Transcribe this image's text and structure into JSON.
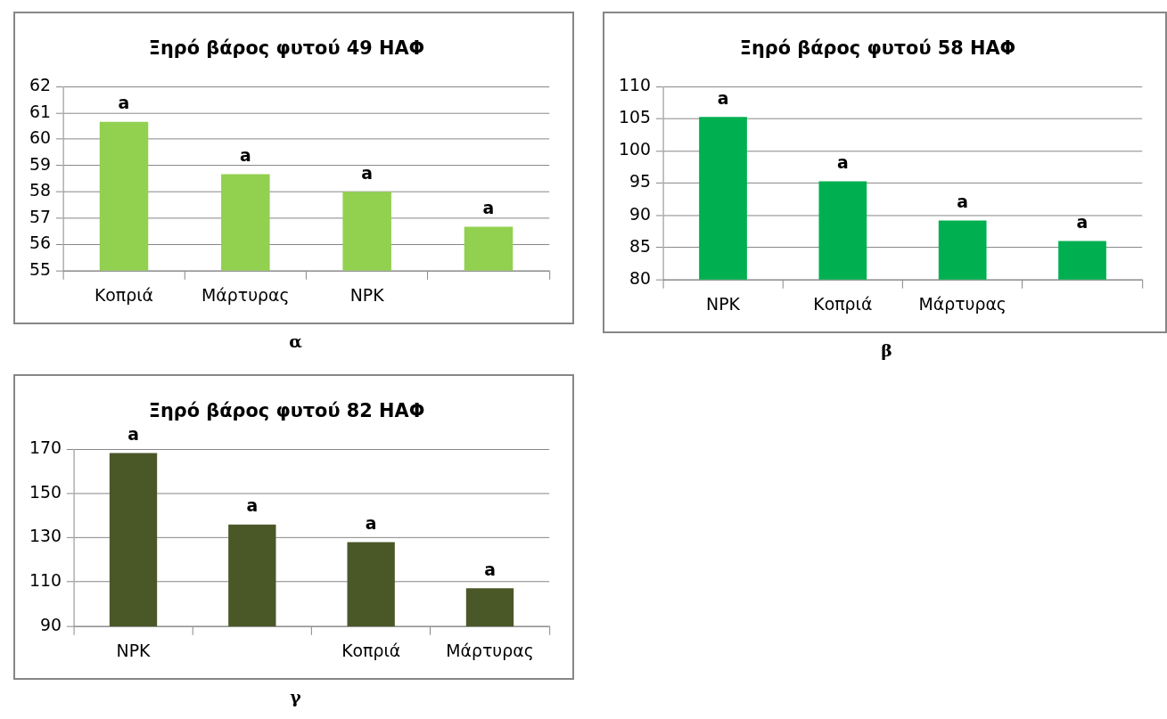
{
  "chart_data": [
    {
      "type": "bar",
      "title": "Ξηρό βάρος φυτού 49 ΗΑΦ",
      "categories": [
        "Κοπριά",
        "Μάρτυρας",
        "NPK",
        null
      ],
      "values": [
        60.66,
        58.67,
        58.0,
        56.67
      ],
      "color": "#92d050",
      "value_labels": [
        "a",
        "a",
        "a",
        "a"
      ],
      "ylim": [
        55,
        62
      ],
      "yticks": [
        55,
        56,
        57,
        58,
        59,
        60,
        61,
        62
      ],
      "grid": "y",
      "annotations": [
        "α"
      ]
    },
    {
      "type": "bar",
      "title": "Ξηρό βάρος φυτού 58 ΗΑΦ",
      "categories": [
        "NPK",
        "Κοπριά",
        "Μάρτυρας",
        null
      ],
      "values": [
        105.3,
        95.3,
        89.2,
        86.0
      ],
      "color": "#00b050",
      "value_labels": [
        "a",
        "a",
        "a",
        "a"
      ],
      "ylim": [
        80,
        110
      ],
      "yticks": [
        80,
        85,
        90,
        95,
        100,
        105,
        110
      ],
      "grid": "y",
      "annotations": [
        "β"
      ]
    },
    {
      "type": "bar",
      "title": "Ξηρό βάρος φυτού 82 ΗΑΦ",
      "categories": [
        "NPK",
        null,
        "Κοπριά",
        "Μάρτυρας"
      ],
      "values": [
        168.3,
        136,
        128,
        107.2
      ],
      "color": "#4a5828",
      "value_labels": [
        "a",
        "a",
        "a",
        "a"
      ],
      "ylim": [
        90,
        170
      ],
      "yticks": [
        90,
        110,
        130,
        150,
        170
      ],
      "grid": "y",
      "annotations": [
        "γ"
      ]
    }
  ]
}
